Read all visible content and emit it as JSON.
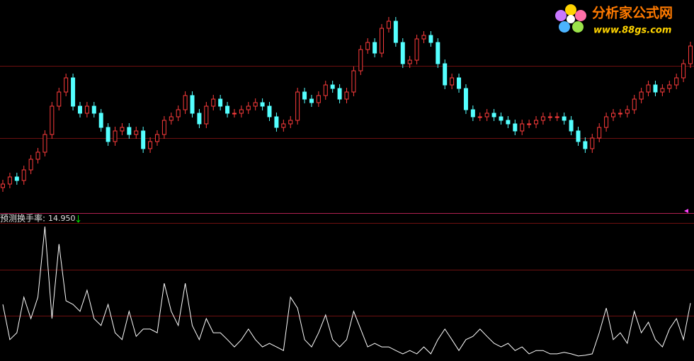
{
  "logo": {
    "title": "分析家公式网",
    "url": "www.88gs.com"
  },
  "chart_data": [
    {
      "type": "candlestick",
      "ylim": [
        0,
        300
      ],
      "up_color": "#ff3c3c",
      "down_color": "#54ffff",
      "open": [
        35,
        40,
        50,
        45,
        60,
        75,
        85,
        110,
        150,
        170,
        190,
        150,
        140,
        150,
        140,
        120,
        100,
        115,
        120,
        110,
        115,
        90,
        100,
        110,
        130,
        135,
        145,
        165,
        140,
        125,
        150,
        160,
        150,
        140,
        140,
        145,
        150,
        155,
        150,
        135,
        120,
        125,
        130,
        170,
        160,
        155,
        165,
        180,
        175,
        160,
        170,
        200,
        230,
        240,
        225,
        260,
        270,
        240,
        210,
        215,
        245,
        250,
        240,
        210,
        180,
        190,
        175,
        145,
        135,
        135,
        140,
        135,
        130,
        125,
        115,
        125,
        125,
        130,
        135,
        135,
        135,
        130,
        115,
        100,
        90,
        105,
        120,
        135,
        140,
        140,
        145,
        160,
        170,
        180,
        170,
        175,
        180,
        190,
        210
      ],
      "high": [
        46,
        56,
        56,
        66,
        81,
        91,
        116,
        156,
        176,
        196,
        196,
        156,
        156,
        156,
        146,
        126,
        121,
        126,
        126,
        121,
        121,
        106,
        116,
        136,
        141,
        151,
        171,
        171,
        146,
        156,
        166,
        166,
        156,
        146,
        151,
        156,
        161,
        161,
        156,
        141,
        131,
        136,
        176,
        176,
        166,
        171,
        186,
        186,
        181,
        176,
        206,
        236,
        246,
        246,
        266,
        276,
        276,
        246,
        221,
        251,
        256,
        256,
        246,
        216,
        196,
        196,
        181,
        151,
        141,
        146,
        146,
        141,
        136,
        131,
        131,
        131,
        136,
        141,
        141,
        141,
        141,
        136,
        121,
        106,
        111,
        126,
        141,
        146,
        146,
        151,
        166,
        176,
        186,
        186,
        181,
        186,
        196,
        216,
        241
      ],
      "low": [
        29,
        34,
        39,
        39,
        54,
        69,
        79,
        104,
        144,
        164,
        144,
        134,
        134,
        134,
        114,
        94,
        94,
        109,
        104,
        104,
        84,
        84,
        94,
        104,
        124,
        129,
        139,
        134,
        119,
        119,
        144,
        144,
        134,
        134,
        134,
        139,
        144,
        144,
        129,
        114,
        114,
        119,
        124,
        154,
        149,
        149,
        159,
        169,
        154,
        154,
        164,
        194,
        224,
        219,
        219,
        254,
        234,
        204,
        204,
        209,
        239,
        234,
        204,
        174,
        174,
        169,
        139,
        129,
        129,
        129,
        129,
        124,
        119,
        109,
        109,
        119,
        119,
        124,
        129,
        129,
        124,
        109,
        94,
        84,
        84,
        99,
        114,
        129,
        134,
        134,
        139,
        154,
        164,
        164,
        164,
        169,
        174,
        184,
        204
      ],
      "close": [
        40,
        50,
        45,
        60,
        75,
        85,
        110,
        150,
        170,
        190,
        150,
        140,
        150,
        140,
        120,
        100,
        115,
        120,
        110,
        115,
        90,
        100,
        110,
        130,
        135,
        145,
        165,
        140,
        125,
        150,
        160,
        150,
        140,
        140,
        145,
        150,
        155,
        150,
        135,
        120,
        125,
        130,
        170,
        160,
        155,
        165,
        180,
        175,
        160,
        170,
        200,
        230,
        240,
        225,
        260,
        270,
        240,
        210,
        215,
        245,
        250,
        240,
        210,
        180,
        190,
        175,
        145,
        135,
        135,
        140,
        135,
        130,
        125,
        115,
        125,
        125,
        130,
        135,
        135,
        135,
        130,
        115,
        100,
        90,
        105,
        120,
        135,
        140,
        140,
        145,
        160,
        170,
        180,
        170,
        175,
        180,
        190,
        210,
        235
      ]
    },
    {
      "type": "line",
      "ylim": [
        0,
        37
      ],
      "color": "#ffffff",
      "series": [
        {
          "name": "预测换手率:",
          "color": "#ffffff",
          "values": [
            14.6,
            4.9,
            6.8,
            16.6,
            10.7,
            16.6,
            36,
            10.7,
            31.2,
            15.6,
            14.6,
            12.7,
            18.5,
            10.7,
            8.8,
            14.6,
            6.8,
            4.9,
            12.7,
            5.8,
            7.8,
            7.8,
            6.8,
            20.4,
            12.7,
            8.8,
            20.4,
            8.8,
            4.9,
            10.7,
            6.8,
            6.8,
            4.9,
            2.9,
            4.9,
            7.8,
            4.9,
            2.9,
            3.9,
            2.9,
            1.9,
            16.6,
            13.6,
            4.9,
            2.9,
            6.8,
            11.7,
            4.9,
            2.9,
            4.9,
            12.7,
            7.8,
            2.9,
            3.9,
            2.9,
            2.9,
            1.9,
            1.0,
            1.9,
            1.0,
            2.9,
            1.0,
            4.9,
            7.8,
            4.9,
            1.9,
            4.9,
            5.8,
            7.8,
            5.8,
            3.9,
            2.9,
            3.9,
            1.9,
            2.9,
            1.0,
            1.9,
            1.9,
            1.0,
            1.0,
            1.4,
            1.0,
            0.4,
            0.6,
            1.0,
            6.8,
            13.6,
            4.9,
            6.8,
            3.9,
            12.7,
            6.8,
            9.7,
            4.9,
            2.9,
            7.8,
            10.7,
            4.9,
            14.95
          ],
          "current": {
            "value": 14.95,
            "label": "14.950"
          }
        }
      ]
    }
  ]
}
